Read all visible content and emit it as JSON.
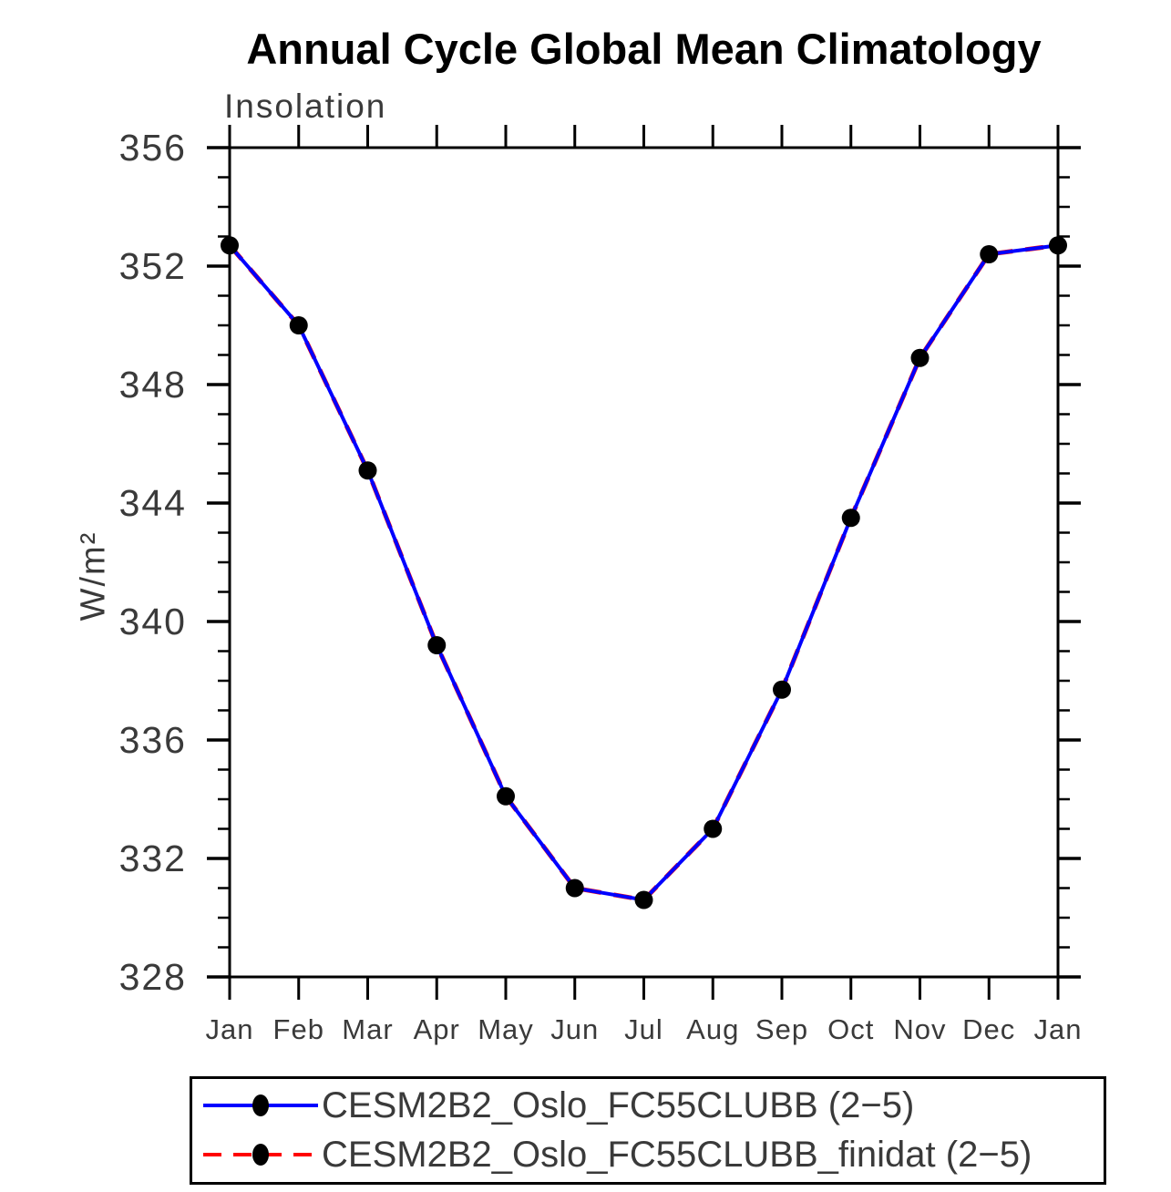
{
  "page": {
    "background": "#ffffff"
  },
  "chart_data": {
    "type": "line",
    "title": "Annual Cycle Global Mean Climatology",
    "subtitle": "Insolation",
    "ylabel": "W/m²",
    "xlabel": "",
    "categories": [
      "Jan",
      "Feb",
      "Mar",
      "Apr",
      "May",
      "Jun",
      "Jul",
      "Aug",
      "Sep",
      "Oct",
      "Nov",
      "Dec",
      "Jan"
    ],
    "ylim": [
      328,
      356
    ],
    "y_tick_labels": [
      "356",
      "352",
      "348",
      "344",
      "340",
      "336",
      "332",
      "328"
    ],
    "y_major_step": 4,
    "y_minor_step": 1,
    "grid": false,
    "legend_position": "bottom",
    "axis_color": "#000000",
    "text_color": "#3a3a3a",
    "marker_color": "#000000",
    "series": [
      {
        "name": "CESM2B2_Oslo_FC55CLUBB (2−5)",
        "color": "#0000ff",
        "line_style": "solid",
        "values": [
          352.7,
          350.0,
          345.1,
          339.2,
          334.1,
          331.0,
          330.6,
          333.0,
          337.7,
          343.5,
          348.9,
          352.4,
          352.7
        ]
      },
      {
        "name": "CESM2B2_Oslo_FC55CLUBB_finidat (2−5)",
        "color": "#ff0000",
        "line_style": "dashed",
        "values": [
          352.7,
          350.0,
          345.1,
          339.2,
          334.1,
          331.0,
          330.6,
          333.0,
          337.7,
          343.5,
          348.9,
          352.4,
          352.7
        ]
      }
    ]
  }
}
